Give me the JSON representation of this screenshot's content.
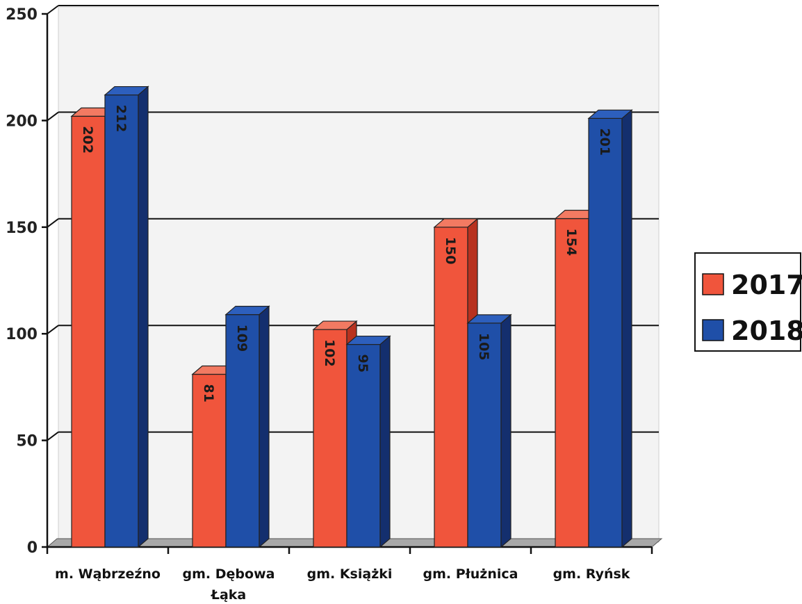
{
  "chart_data": {
    "type": "bar",
    "categories": [
      "m. Wąbrzeźno",
      "gm. Dębowa Łąka",
      "gm. Książki",
      "gm. Płużnica",
      "gm. Ryńsk"
    ],
    "category_lines": [
      [
        "m. Wąbrzeźno"
      ],
      [
        "gm. Dębowa",
        "Łąka"
      ],
      [
        "gm. Książki"
      ],
      [
        "gm. Płużnica"
      ],
      [
        "gm. Ryńsk"
      ]
    ],
    "series": [
      {
        "name": "2017",
        "values": [
          202,
          81,
          102,
          150,
          154
        ],
        "color": "#f0553c",
        "side": "#b8321f",
        "top": "#f27a62"
      },
      {
        "name": "2018",
        "values": [
          212,
          109,
          95,
          105,
          201
        ],
        "color": "#1f4fa8",
        "side": "#142f6e",
        "top": "#2d5fbd"
      }
    ],
    "ylim": [
      0,
      250
    ],
    "yticks": [
      0,
      50,
      100,
      150,
      200,
      250
    ],
    "grid": true,
    "legend": "right",
    "three_d": true
  }
}
